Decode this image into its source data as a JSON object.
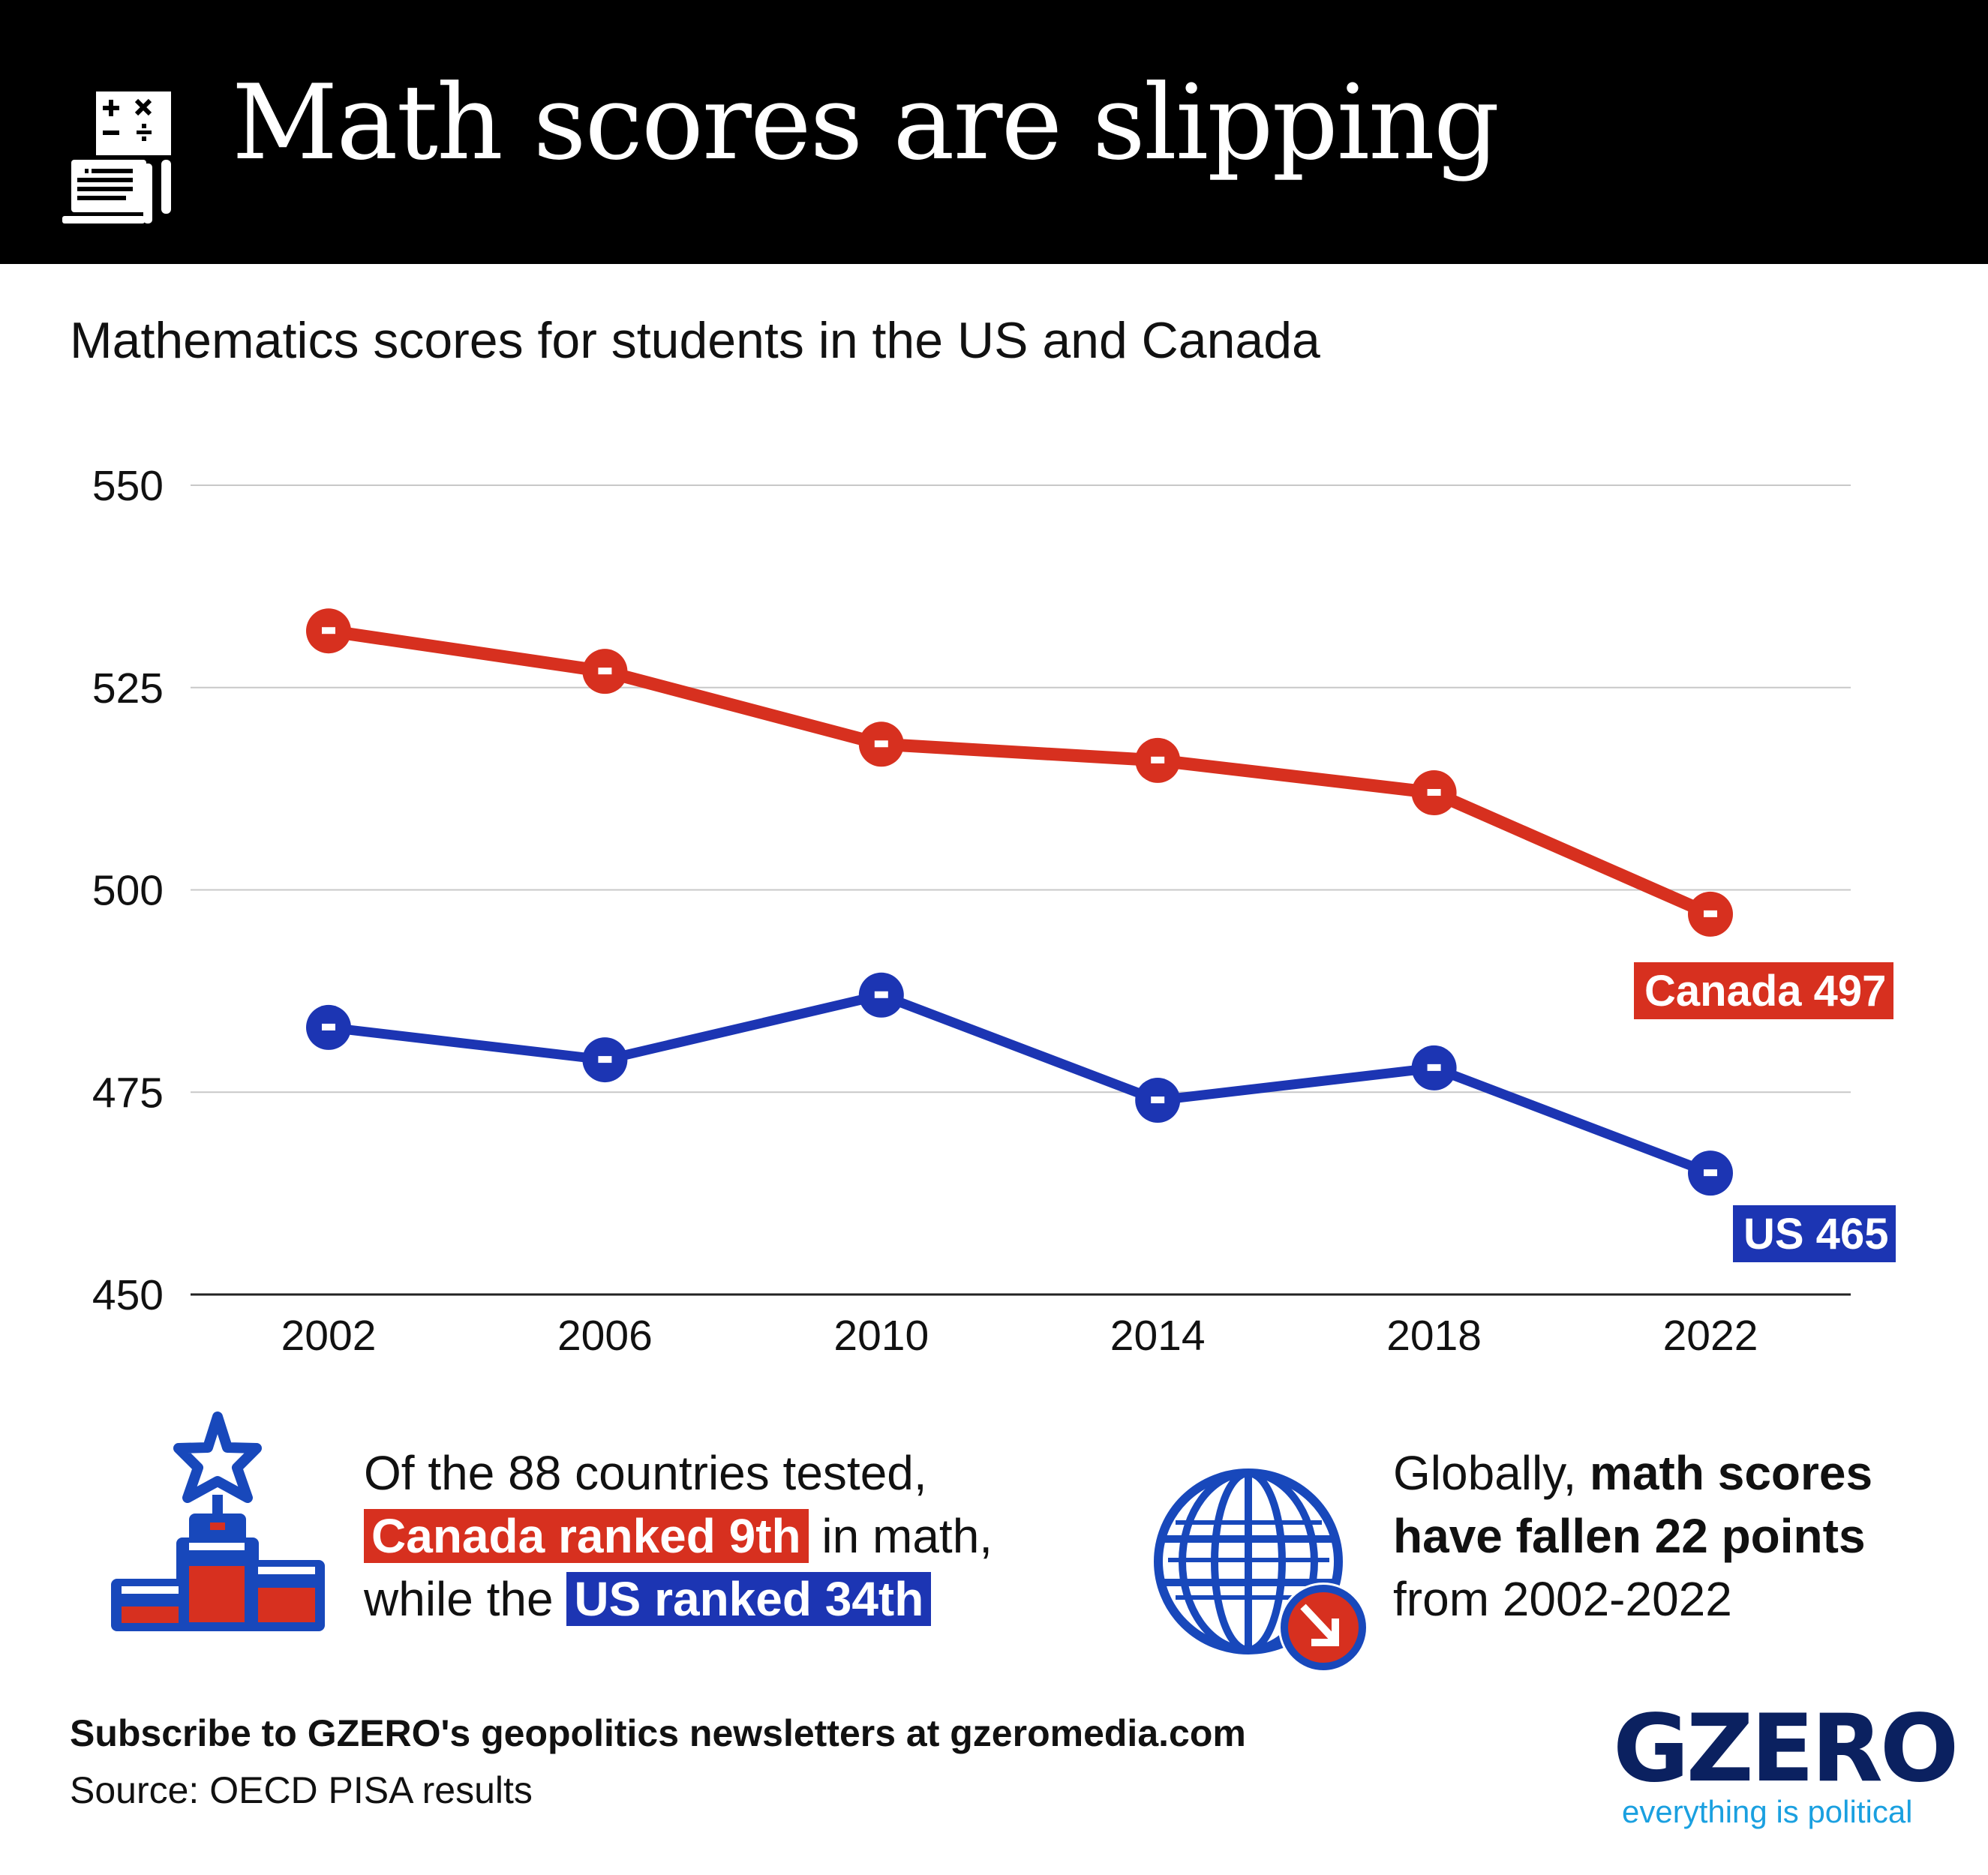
{
  "header": {
    "title": "Math scores are slipping",
    "icon": "calculator-paper-icon"
  },
  "subtitle": "Mathematics scores for students in the US and Canada",
  "colors": {
    "canada": "#d7301f",
    "us": "#1c35b3",
    "grid": "#c8c8c8",
    "logo": "#0b2160",
    "tagline": "#1aa0e0"
  },
  "chart_data": {
    "type": "line",
    "title": "Mathematics scores for students in the US and Canada",
    "xlabel": "",
    "ylabel": "",
    "x": [
      2002,
      2006,
      2010,
      2014,
      2018,
      2022
    ],
    "x_tick_labels": [
      "2002",
      "2006",
      "2010",
      "2014",
      "2018",
      "2022"
    ],
    "ylim": [
      450,
      550
    ],
    "y_ticks": [
      550,
      525,
      500,
      475,
      450
    ],
    "y_tick_labels": [
      "550",
      "525",
      "500",
      "475",
      "450"
    ],
    "grid": "horizontal",
    "series": [
      {
        "name": "Canada",
        "color": "#d7301f",
        "values": [
          532,
          527,
          518,
          516,
          512,
          497
        ],
        "end_label": "Canada 497"
      },
      {
        "name": "US",
        "color": "#1c35b3",
        "values": [
          483,
          479,
          487,
          474,
          478,
          465
        ],
        "end_label": "US 465"
      }
    ]
  },
  "stats": {
    "ranking": {
      "icon": "podium-star-icon",
      "line1": "Of the 88 countries tested,",
      "canada_highlight": "Canada ranked 9th",
      "line2_rest": " in math,",
      "line3_prefix": "while the ",
      "us_highlight": "US ranked 34th"
    },
    "global": {
      "icon": "globe-down-arrow-icon",
      "prefix": "Globally, ",
      "bold1": "math scores",
      "bold2": "have fallen 22 points",
      "line3": "from 2002-2022"
    }
  },
  "footer": {
    "subscribe": "Subscribe to GZERO's geopolitics newsletters at gzeromedia.com",
    "source": "Source: OECD PISA results"
  },
  "logo": {
    "text": "GZERO",
    "tagline": "everything is political"
  }
}
